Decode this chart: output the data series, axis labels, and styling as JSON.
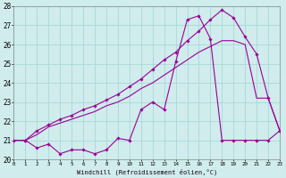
{
  "xlabel": "Windchill (Refroidissement éolien,°C)",
  "bg_color": "#d0ecec",
  "line_color": "#990099",
  "grid_color": "#a8d8d8",
  "xmin": 0,
  "xmax": 23,
  "ymin": 20,
  "ymax": 28,
  "yticks": [
    20,
    21,
    22,
    23,
    24,
    25,
    26,
    27,
    28
  ],
  "xticks": [
    0,
    1,
    2,
    3,
    4,
    5,
    6,
    7,
    8,
    9,
    10,
    11,
    12,
    13,
    14,
    15,
    16,
    17,
    18,
    19,
    20,
    21,
    22,
    23
  ],
  "line1_x": [
    0,
    1,
    2,
    3,
    4,
    5,
    6,
    7,
    8,
    9,
    10,
    11,
    12,
    13,
    14,
    15,
    16,
    17,
    18,
    19,
    20,
    21,
    22,
    23
  ],
  "line1_y": [
    21.0,
    21.0,
    20.6,
    20.8,
    20.3,
    20.5,
    20.5,
    20.3,
    20.5,
    21.1,
    21.0,
    22.6,
    23.0,
    22.6,
    25.1,
    27.3,
    27.5,
    26.3,
    21.0,
    21.0,
    21.0,
    21.0,
    21.0,
    21.5
  ],
  "line2_x": [
    0,
    1,
    2,
    3,
    4,
    5,
    6,
    7,
    8,
    9,
    10,
    11,
    12,
    13,
    14,
    15,
    16,
    17,
    18,
    19,
    20,
    21,
    22,
    23
  ],
  "line2_y": [
    21.0,
    21.0,
    21.3,
    21.7,
    21.9,
    22.1,
    22.3,
    22.5,
    22.8,
    23.0,
    23.3,
    23.7,
    24.0,
    24.4,
    24.8,
    25.2,
    25.6,
    25.9,
    26.2,
    26.2,
    26.0,
    23.2,
    23.2,
    21.5
  ],
  "line3_x": [
    0,
    1,
    2,
    3,
    4,
    5,
    6,
    7,
    8,
    9,
    10,
    11,
    12,
    13,
    14,
    15,
    16,
    17,
    18,
    19,
    20,
    21,
    22,
    23
  ],
  "line3_y": [
    21.0,
    21.0,
    21.5,
    21.8,
    22.1,
    22.3,
    22.6,
    22.8,
    23.1,
    23.4,
    23.8,
    24.2,
    24.7,
    25.2,
    25.6,
    26.2,
    26.7,
    27.3,
    27.8,
    27.4,
    26.4,
    25.5,
    23.2,
    21.5
  ]
}
